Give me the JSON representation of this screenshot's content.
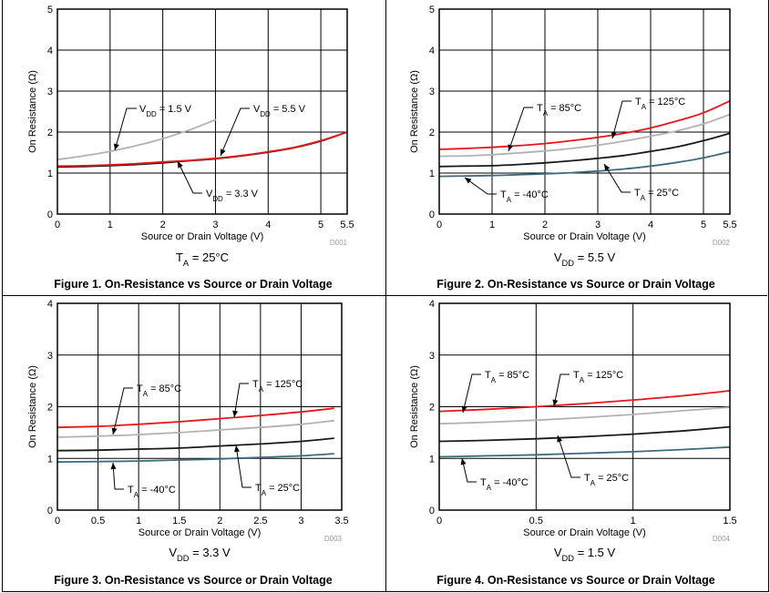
{
  "chart_data": [
    {
      "type": "line",
      "title": "Figure 1. On-Resistance vs Source or Drain Voltage",
      "xlabel": "Source or Drain Voltage (V)",
      "ylabel": "On Resistance (Ω)",
      "condition": {
        "main": "T",
        "sub": "A",
        "rest": " = 25°C"
      },
      "code": "D001",
      "xlim": [
        0,
        5.5
      ],
      "ylim": [
        0,
        5
      ],
      "xticks": [
        0,
        1,
        2,
        3,
        4,
        5,
        5.5
      ],
      "xtick_labels": [
        "0",
        "1",
        "2",
        "3",
        "4",
        "5",
        "5.5"
      ],
      "yticks": [
        0,
        1,
        2,
        3,
        4,
        5
      ],
      "ytick_labels": [
        "0",
        "1",
        "2",
        "3",
        "4",
        "5"
      ],
      "grid": true,
      "series": [
        {
          "name": "V_DD = 1.5 V",
          "color": "#b2b2b2",
          "x": [
            0,
            0.5,
            1,
            1.5,
            2,
            2.5,
            3.0
          ],
          "y": [
            1.33,
            1.42,
            1.53,
            1.67,
            1.84,
            2.05,
            2.3
          ]
        },
        {
          "name": "V_DD = 3.3 V",
          "color": "#1a1a1a",
          "x": [
            0,
            0.5,
            1,
            1.5,
            2,
            2.5,
            3,
            3.5,
            4,
            4.5,
            5,
            5.5
          ],
          "y": [
            1.15,
            1.16,
            1.18,
            1.21,
            1.25,
            1.3,
            1.35,
            1.42,
            1.51,
            1.62,
            1.78,
            2.0
          ]
        },
        {
          "name": "V_DD = 5.5 V",
          "color": "#e8161a",
          "x": [
            0,
            0.5,
            1,
            1.5,
            2,
            2.5,
            3,
            3.5,
            4,
            4.5,
            5,
            5.5
          ],
          "y": [
            1.17,
            1.18,
            1.2,
            1.23,
            1.27,
            1.31,
            1.36,
            1.43,
            1.52,
            1.63,
            1.79,
            2.0
          ]
        }
      ],
      "annotations": [
        {
          "main": "V",
          "sub": "DD",
          "rest": " = 1.5 V"
        },
        {
          "main": "V",
          "sub": "DD",
          "rest": " = 5.5 V"
        },
        {
          "main": "V",
          "sub": "DD",
          "rest": " = 3.3 V"
        }
      ]
    },
    {
      "type": "line",
      "title": "Figure 2. On-Resistance vs Source or Drain Voltage",
      "xlabel": "Source or Drain Voltage (V)",
      "ylabel": "On Resistance (Ω)",
      "condition": {
        "main": "V",
        "sub": "DD",
        "rest": " = 5.5 V"
      },
      "code": "D002",
      "xlim": [
        0,
        5.5
      ],
      "ylim": [
        0,
        5
      ],
      "xticks": [
        0,
        1,
        2,
        3,
        4,
        5,
        5.5
      ],
      "xtick_labels": [
        "0",
        "1",
        "2",
        "3",
        "4",
        "5",
        "5.5"
      ],
      "yticks": [
        0,
        1,
        2,
        3,
        4,
        5
      ],
      "ytick_labels": [
        "0",
        "1",
        "2",
        "3",
        "4",
        "5"
      ],
      "grid": true,
      "series": [
        {
          "name": "T_A = 125°C",
          "color": "#e8161a",
          "x": [
            0,
            0.5,
            1,
            1.5,
            2,
            2.5,
            3,
            3.5,
            4,
            4.5,
            5,
            5.5
          ],
          "y": [
            1.58,
            1.6,
            1.63,
            1.67,
            1.72,
            1.79,
            1.87,
            1.97,
            2.1,
            2.27,
            2.47,
            2.76
          ]
        },
        {
          "name": "T_A = 85°C",
          "color": "#b2b2b2",
          "x": [
            0,
            0.5,
            1,
            1.5,
            2,
            2.5,
            3,
            3.5,
            4,
            4.5,
            5,
            5.5
          ],
          "y": [
            1.41,
            1.42,
            1.45,
            1.49,
            1.54,
            1.6,
            1.68,
            1.78,
            1.9,
            2.03,
            2.2,
            2.43
          ]
        },
        {
          "name": "T_A = 25°C",
          "color": "#1a1a1a",
          "x": [
            0,
            0.5,
            1,
            1.5,
            2,
            2.5,
            3,
            3.5,
            4,
            4.5,
            5,
            5.5
          ],
          "y": [
            1.16,
            1.17,
            1.18,
            1.21,
            1.25,
            1.3,
            1.36,
            1.43,
            1.53,
            1.64,
            1.79,
            1.97
          ]
        },
        {
          "name": "T_A = -40°C",
          "color": "#3e6b80",
          "x": [
            0,
            0.5,
            1,
            1.5,
            2,
            2.5,
            3,
            3.5,
            4,
            4.5,
            5,
            5.5
          ],
          "y": [
            0.92,
            0.93,
            0.94,
            0.96,
            0.98,
            1.01,
            1.05,
            1.1,
            1.17,
            1.26,
            1.37,
            1.52
          ]
        }
      ],
      "annotations": [
        {
          "main": "T",
          "sub": "A",
          "rest": " = 85°C"
        },
        {
          "main": "T",
          "sub": "A",
          "rest": " = 125°C"
        },
        {
          "main": "T",
          "sub": "A",
          "rest": " = -40°C"
        },
        {
          "main": "T",
          "sub": "A",
          "rest": " = 25°C"
        }
      ]
    },
    {
      "type": "line",
      "title": "Figure 3. On-Resistance vs Source or Drain Voltage",
      "xlabel": "Source or Drain Voltage (V)",
      "ylabel": "On Resistance (Ω)",
      "condition": {
        "main": "V",
        "sub": "DD",
        "rest": " = 3.3 V"
      },
      "code": "D003",
      "xlim": [
        0,
        3.5
      ],
      "ylim": [
        0,
        4
      ],
      "xticks": [
        0,
        0.5,
        1,
        1.5,
        2,
        2.5,
        3,
        3.5
      ],
      "xtick_labels": [
        "0",
        "0.5",
        "1",
        "1.5",
        "2",
        "2.5",
        "3",
        "3.5"
      ],
      "yticks": [
        0,
        1,
        2,
        3,
        4
      ],
      "ytick_labels": [
        "0",
        "1",
        "2",
        "3",
        "4"
      ],
      "grid": true,
      "series": [
        {
          "name": "T_A = 125°C",
          "color": "#e8161a",
          "x": [
            0,
            0.5,
            1,
            1.5,
            2,
            2.5,
            3,
            3.4
          ],
          "y": [
            1.6,
            1.62,
            1.66,
            1.71,
            1.77,
            1.83,
            1.9,
            1.97
          ]
        },
        {
          "name": "T_A = 85°C",
          "color": "#b2b2b2",
          "x": [
            0,
            0.5,
            1,
            1.5,
            2,
            2.5,
            3,
            3.4
          ],
          "y": [
            1.41,
            1.43,
            1.46,
            1.5,
            1.55,
            1.6,
            1.66,
            1.73
          ]
        },
        {
          "name": "T_A = 25°C",
          "color": "#1a1a1a",
          "x": [
            0,
            0.5,
            1,
            1.5,
            2,
            2.5,
            3,
            3.4
          ],
          "y": [
            1.15,
            1.16,
            1.18,
            1.2,
            1.24,
            1.28,
            1.33,
            1.39
          ]
        },
        {
          "name": "T_A = -40°C",
          "color": "#3e6b80",
          "x": [
            0,
            0.5,
            1,
            1.5,
            2,
            2.5,
            3,
            3.4
          ],
          "y": [
            0.93,
            0.94,
            0.95,
            0.97,
            0.99,
            1.02,
            1.05,
            1.09
          ]
        }
      ],
      "annotations": [
        {
          "main": "T",
          "sub": "A",
          "rest": " = 85°C"
        },
        {
          "main": "T",
          "sub": "A",
          "rest": " = 125°C"
        },
        {
          "main": "T",
          "sub": "A",
          "rest": " = -40°C"
        },
        {
          "main": "T",
          "sub": "A",
          "rest": " = 25°C"
        }
      ]
    },
    {
      "type": "line",
      "title": "Figure 4. On-Resistance vs Source or Drain Voltage",
      "xlabel": "Source or Drain Voltage (V)",
      "ylabel": "On Resistance (Ω)",
      "condition": {
        "main": "V",
        "sub": "DD",
        "rest": " = 1.5 V"
      },
      "code": "D004",
      "xlim": [
        0,
        1.5
      ],
      "ylim": [
        0,
        4
      ],
      "xticks": [
        0,
        0.5,
        1,
        1.5
      ],
      "xtick_labels": [
        "0",
        "0.5",
        "1",
        "1.5"
      ],
      "yticks": [
        0,
        1,
        2,
        3,
        4
      ],
      "ytick_labels": [
        "0",
        "1",
        "2",
        "3",
        "4"
      ],
      "grid": true,
      "series": [
        {
          "name": "T_A = 125°C",
          "color": "#e8161a",
          "x": [
            0,
            0.25,
            0.5,
            0.75,
            1,
            1.25,
            1.5
          ],
          "y": [
            1.91,
            1.95,
            2.0,
            2.06,
            2.13,
            2.21,
            2.31
          ]
        },
        {
          "name": "T_A = 85°C",
          "color": "#b2b2b2",
          "x": [
            0,
            0.25,
            0.5,
            0.75,
            1,
            1.25,
            1.5
          ],
          "y": [
            1.67,
            1.7,
            1.74,
            1.79,
            1.85,
            1.92,
            1.99
          ]
        },
        {
          "name": "T_A = 25°C",
          "color": "#1a1a1a",
          "x": [
            0,
            0.25,
            0.5,
            0.75,
            1,
            1.25,
            1.5
          ],
          "y": [
            1.33,
            1.35,
            1.38,
            1.42,
            1.47,
            1.53,
            1.61
          ]
        },
        {
          "name": "T_A = -40°C",
          "color": "#3e6b80",
          "x": [
            0,
            0.25,
            0.5,
            0.75,
            1,
            1.25,
            1.5
          ],
          "y": [
            1.03,
            1.05,
            1.07,
            1.1,
            1.13,
            1.17,
            1.22
          ]
        }
      ],
      "annotations": [
        {
          "main": "T",
          "sub": "A",
          "rest": " = 85°C"
        },
        {
          "main": "T",
          "sub": "A",
          "rest": " = 125°C"
        },
        {
          "main": "T",
          "sub": "A",
          "rest": " = -40°C"
        },
        {
          "main": "T",
          "sub": "A",
          "rest": " = 25°C"
        }
      ]
    }
  ]
}
